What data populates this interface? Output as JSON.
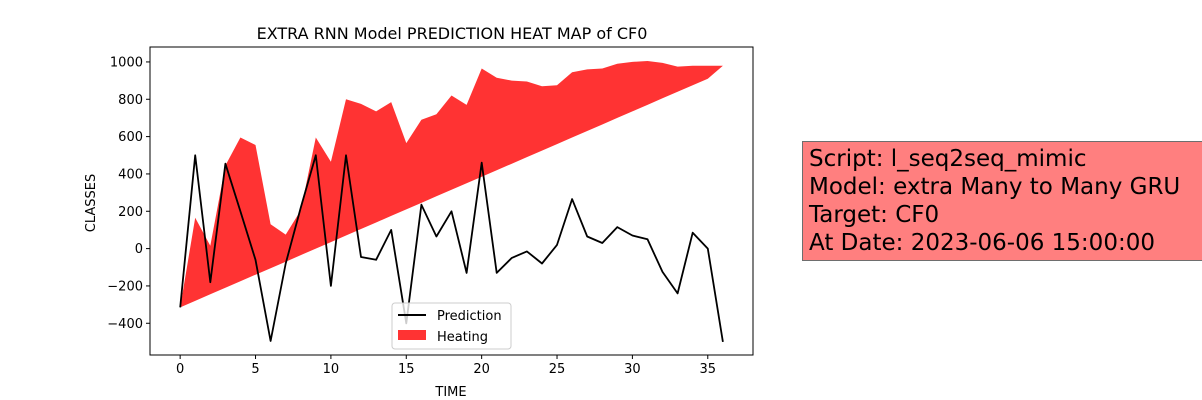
{
  "chart_data": {
    "type": "line",
    "title": "EXTRA RNN Model PREDICTION HEAT MAP of CF0",
    "xlabel": "TIME",
    "ylabel": "CLASSES",
    "xlim": [
      -2,
      38
    ],
    "ylim": [
      -570,
      1080
    ],
    "xticks": [
      0,
      5,
      10,
      15,
      20,
      25,
      30,
      35
    ],
    "yticks": [
      -400,
      -200,
      0,
      200,
      400,
      600,
      800,
      1000
    ],
    "grid": false,
    "legend": {
      "location": "lower center"
    },
    "x": [
      0,
      1,
      2,
      3,
      4,
      5,
      6,
      7,
      8,
      9,
      10,
      11,
      12,
      13,
      14,
      15,
      16,
      17,
      18,
      19,
      20,
      21,
      22,
      23,
      24,
      25,
      26,
      27,
      28,
      29,
      30,
      31,
      32,
      33,
      34,
      35,
      36
    ],
    "series": [
      {
        "name": "Prediction",
        "kind": "line",
        "color": "#000000",
        "values": [
          -315,
          500,
          -180,
          455,
          200,
          -60,
          -495,
          -80,
          220,
          500,
          -200,
          500,
          -45,
          -60,
          100,
          -400,
          235,
          65,
          200,
          -130,
          460,
          -130,
          -50,
          -15,
          -80,
          20,
          265,
          65,
          30,
          115,
          70,
          50,
          -125,
          -240,
          85,
          0,
          -500
        ]
      },
      {
        "name": "Heating",
        "kind": "fill_between",
        "color": "#ff0000",
        "alpha": 0.8,
        "upper": [
          -315,
          165,
          15,
          445,
          595,
          555,
          130,
          75,
          205,
          595,
          465,
          800,
          775,
          735,
          785,
          565,
          690,
          720,
          820,
          770,
          965,
          915,
          900,
          895,
          870,
          875,
          945,
          960,
          965,
          990,
          1000,
          1005,
          995,
          975,
          980,
          980,
          980
        ],
        "lower": [
          -315,
          -280,
          -245,
          -210,
          -175,
          -140,
          -105,
          -70,
          -35,
          0,
          35,
          70,
          105,
          140,
          175,
          210,
          245,
          280,
          315,
          350,
          385,
          420,
          455,
          490,
          525,
          560,
          595,
          630,
          665,
          700,
          735,
          770,
          805,
          840,
          875,
          910,
          980
        ]
      }
    ]
  },
  "info_box": {
    "lines": [
      "Script: l_seq2seq_mimic",
      "Model: extra Many to Many GRU",
      "Target: CF0",
      "At Date: 2023-06-06 15:00:00"
    ],
    "background": "#ff7f7f"
  }
}
